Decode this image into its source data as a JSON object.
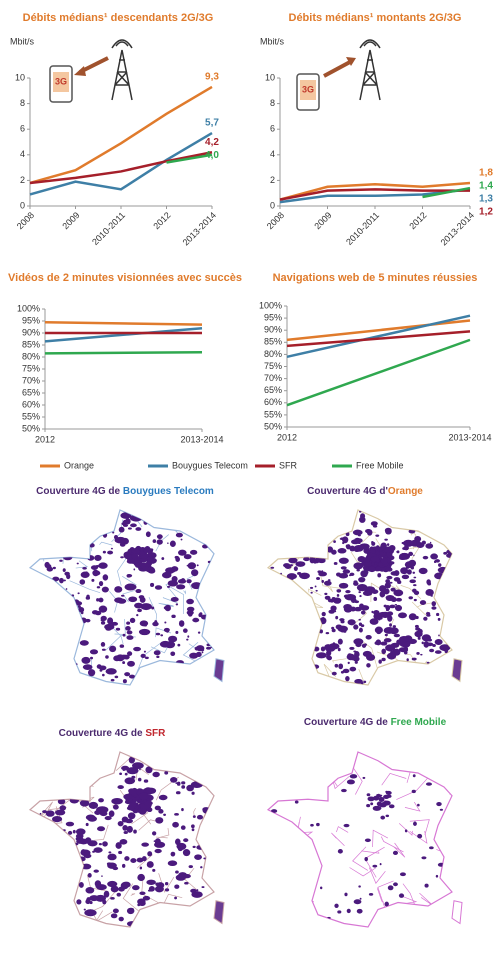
{
  "chart_data": [
    {
      "type": "line",
      "title": "Débits médians¹ descendants 2G/3G",
      "y_label": "Mbit/s",
      "annotation": "3G",
      "categories": [
        "2008",
        "2009",
        "2010-2011",
        "2012",
        "2013-2014"
      ],
      "ylim": [
        0,
        10
      ],
      "yticks": [
        0,
        2,
        4,
        6,
        8,
        10
      ],
      "series": [
        {
          "name": "Orange",
          "color": "#e07b2c",
          "values": [
            1.8,
            2.8,
            4.9,
            7.2,
            9.3
          ],
          "value_labels": [
            null,
            null,
            null,
            null,
            "9,3"
          ]
        },
        {
          "name": "Bouygues Telecom",
          "color": "#3e7fa6",
          "values": [
            0.9,
            1.9,
            1.3,
            3.6,
            5.7
          ],
          "value_labels": [
            null,
            null,
            null,
            null,
            "5,7"
          ]
        },
        {
          "name": "SFR",
          "color": "#a51f2a",
          "values": [
            1.8,
            2.2,
            2.7,
            3.5,
            4.2
          ],
          "value_labels": [
            null,
            null,
            null,
            null,
            "4,2"
          ]
        },
        {
          "name": "Free Mobile",
          "color": "#2fa84f",
          "values": [
            null,
            null,
            null,
            3.4,
            4.0
          ],
          "value_labels": [
            null,
            null,
            null,
            null,
            "4,0"
          ]
        }
      ]
    },
    {
      "type": "line",
      "title": "Débits médians¹ montants 2G/3G",
      "y_label": "Mbit/s",
      "annotation": "3G",
      "categories": [
        "2008",
        "2009",
        "2010-2011",
        "2012",
        "2013-2014"
      ],
      "ylim": [
        0,
        10
      ],
      "yticks": [
        0,
        2,
        4,
        6,
        8,
        10
      ],
      "series": [
        {
          "name": "Orange",
          "color": "#e07b2c",
          "values": [
            0.5,
            1.5,
            1.7,
            1.5,
            1.8
          ],
          "value_labels": [
            null,
            null,
            null,
            null,
            "1,8"
          ]
        },
        {
          "name": "Bouygues Telecom",
          "color": "#3e7fa6",
          "values": [
            0.3,
            0.8,
            0.8,
            0.9,
            1.3
          ],
          "value_labels": [
            null,
            null,
            null,
            null,
            "1,3"
          ]
        },
        {
          "name": "SFR",
          "color": "#a51f2a",
          "values": [
            0.5,
            1.2,
            1.3,
            1.2,
            1.2
          ],
          "value_labels": [
            null,
            null,
            null,
            null,
            "1,2"
          ]
        },
        {
          "name": "Free Mobile",
          "color": "#2fa84f",
          "values": [
            null,
            null,
            null,
            0.7,
            1.4
          ],
          "value_labels": [
            null,
            null,
            null,
            null,
            "1,4"
          ]
        }
      ]
    },
    {
      "type": "line",
      "title": "Vidéos de 2 minutes visionnées avec succès",
      "categories": [
        "2012",
        "2013-2014"
      ],
      "ylim": [
        50,
        100
      ],
      "yticks": [
        {
          "value": 50,
          "label": "50%"
        },
        {
          "value": 55,
          "label": "55%"
        },
        {
          "value": 60,
          "label": "60%"
        },
        {
          "value": 65,
          "label": "65%"
        },
        {
          "value": 70,
          "label": "70%"
        },
        {
          "value": 75,
          "label": "75%"
        },
        {
          "value": 80,
          "label": "80%"
        },
        {
          "value": 85,
          "label": "85%"
        },
        {
          "value": 90,
          "label": "90%"
        },
        {
          "value": 95,
          "label": "95%"
        },
        {
          "value": 100,
          "label": "100%"
        }
      ],
      "series": [
        {
          "name": "Orange",
          "color": "#e07b2c",
          "values": [
            94.5,
            93.5
          ]
        },
        {
          "name": "Bouygues Telecom",
          "color": "#3e7fa6",
          "values": [
            86.5,
            92
          ]
        },
        {
          "name": "SFR",
          "color": "#a51f2a",
          "values": [
            90,
            90
          ]
        },
        {
          "name": "Free Mobile",
          "color": "#2fa84f",
          "values": [
            81.5,
            82
          ]
        }
      ]
    },
    {
      "type": "line",
      "title": "Navigations web de 5 minutes réussies",
      "categories": [
        "2012",
        "2013-2014"
      ],
      "ylim": [
        50,
        100
      ],
      "yticks": [
        {
          "value": 50,
          "label": "50%"
        },
        {
          "value": 55,
          "label": "55%"
        },
        {
          "value": 60,
          "label": "60%"
        },
        {
          "value": 65,
          "label": "65%"
        },
        {
          "value": 70,
          "label": "70%"
        },
        {
          "value": 75,
          "label": "75%"
        },
        {
          "value": 80,
          "label": "80%"
        },
        {
          "value": 85,
          "label": "85%"
        },
        {
          "value": 90,
          "label": "90%"
        },
        {
          "value": 95,
          "label": "95%"
        },
        {
          "value": 100,
          "label": "100%"
        }
      ],
      "series": [
        {
          "name": "Orange",
          "color": "#e07b2c",
          "values": [
            86,
            94
          ]
        },
        {
          "name": "Bouygues Telecom",
          "color": "#3e7fa6",
          "values": [
            79,
            96
          ]
        },
        {
          "name": "SFR",
          "color": "#a51f2a",
          "values": [
            83.5,
            89.5
          ]
        },
        {
          "name": "Free Mobile",
          "color": "#2fa84f",
          "values": [
            59,
            86
          ]
        }
      ]
    }
  ],
  "maps": [
    {
      "prefix": "Couverture 4G de ",
      "operator": "Bouygues Telecom",
      "color": "#2a7bbf"
    },
    {
      "prefix": "Couverture 4G d'",
      "operator": "Orange",
      "color": "#e07b2c"
    },
    {
      "prefix": "Couverture 4G de ",
      "operator": "SFR",
      "color": "#c0262e"
    },
    {
      "prefix": "Couverture 4G de ",
      "operator": "Free Mobile",
      "color": "#2fa84f"
    }
  ]
}
